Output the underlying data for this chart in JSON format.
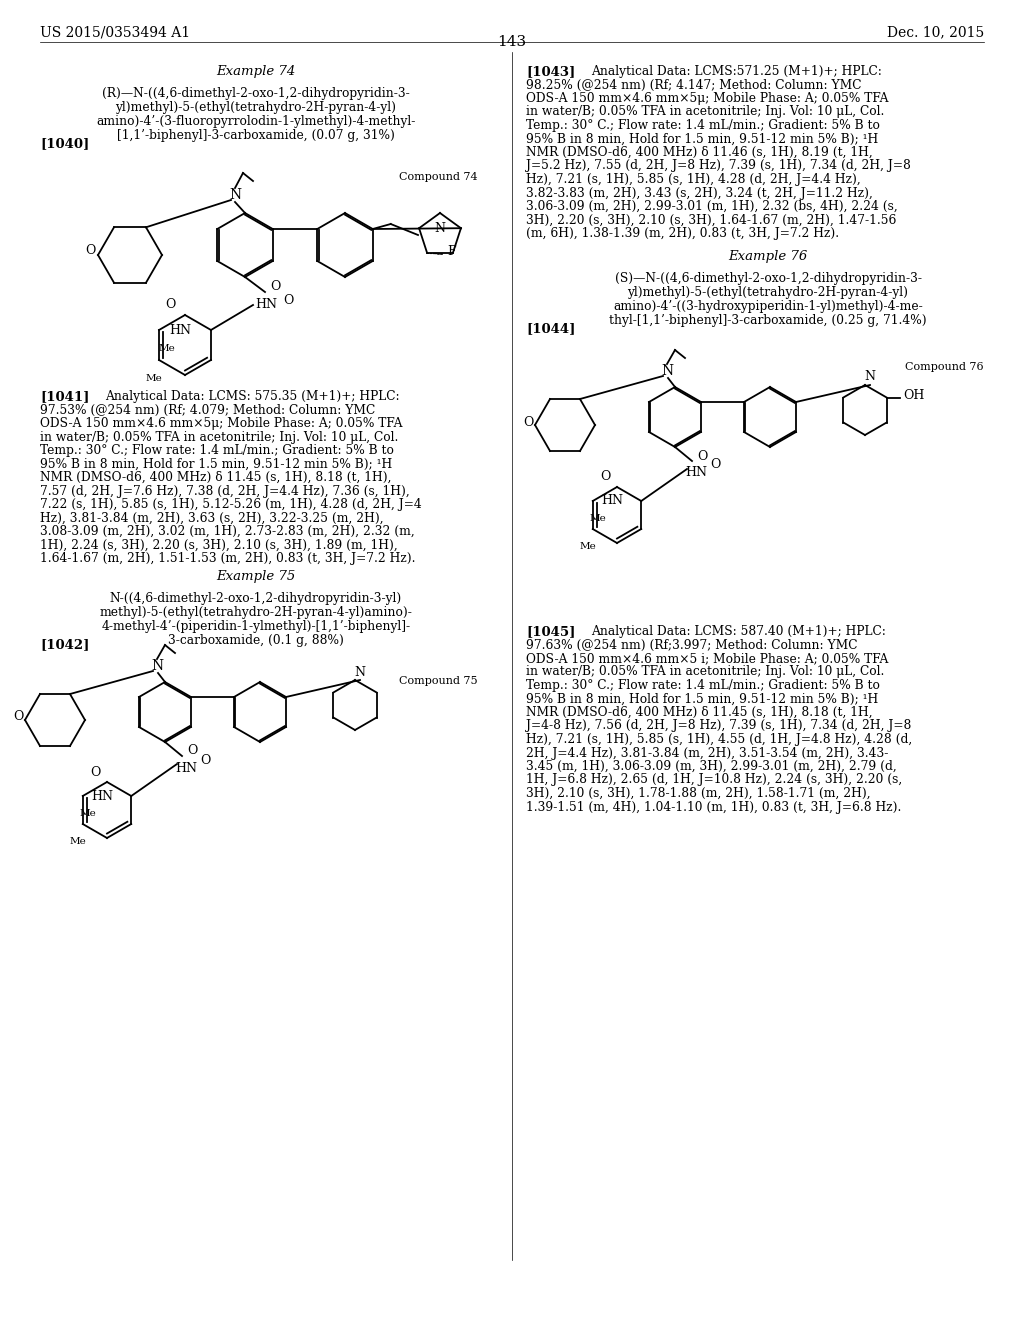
{
  "background_color": "#ffffff",
  "header_left": "US 2015/0353494 A1",
  "header_right": "Dec. 10, 2015",
  "page_number": "143"
}
